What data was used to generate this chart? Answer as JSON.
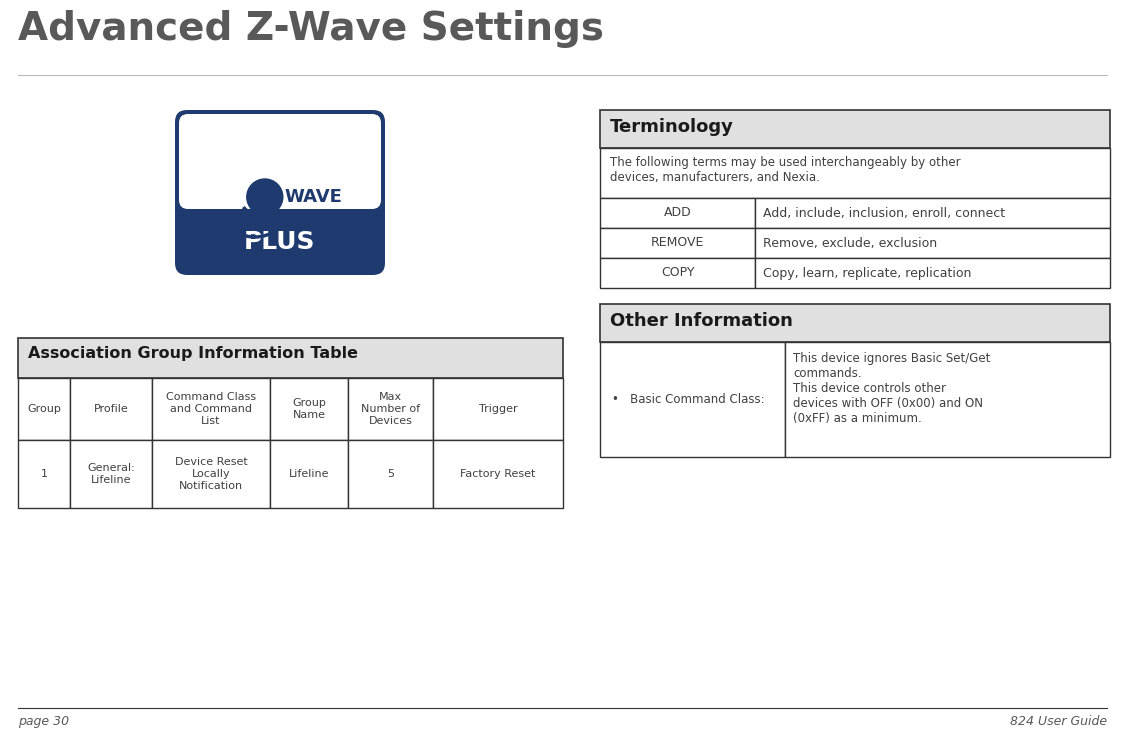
{
  "title": "Advanced Z-Wave Settings",
  "title_color": "#595959",
  "title_fontsize": 28,
  "bg_color": "#ffffff",
  "footer_left": "page 30",
  "footer_right": "824 User Guide",
  "footer_color": "#595959",
  "footer_fontsize": 9,
  "terminology_header": "Terminology",
  "terminology_desc": "The following terms may be used interchangeably by other\ndevices, manufacturers, and Nexia.",
  "terminology_rows": [
    {
      "term": "ADD",
      "definition": "Add, include, inclusion, enroll, connect"
    },
    {
      "term": "REMOVE",
      "definition": "Remove, exclude, exclusion"
    },
    {
      "term": "COPY",
      "definition": "Copy, learn, replicate, replication"
    }
  ],
  "other_header": "Other Information",
  "other_left": "•   Basic Command Class:",
  "other_right": "This device ignores Basic Set/Get\ncommands.\nThis device controls other\ndevices with OFF (0x00) and ON\n(0xFF) as a minimum.",
  "assoc_header": "Association Group Information Table",
  "assoc_col_headers": [
    "Group",
    "Profile",
    "Command Class\nand Command\nList",
    "Group\nName",
    "Max\nNumber of\nDevices",
    "Trigger"
  ],
  "assoc_col_widths": [
    52,
    82,
    118,
    78,
    85,
    130
  ],
  "assoc_row": [
    "1",
    "General:\nLifeline",
    "Device Reset\nLocally\nNotification",
    "Lifeline",
    "5",
    "Factory Reset"
  ],
  "border_color": "#333333",
  "header_bg": "#e0e0e0",
  "text_color": "#404040",
  "navy": "#1e3a6e",
  "white": "#ffffff"
}
